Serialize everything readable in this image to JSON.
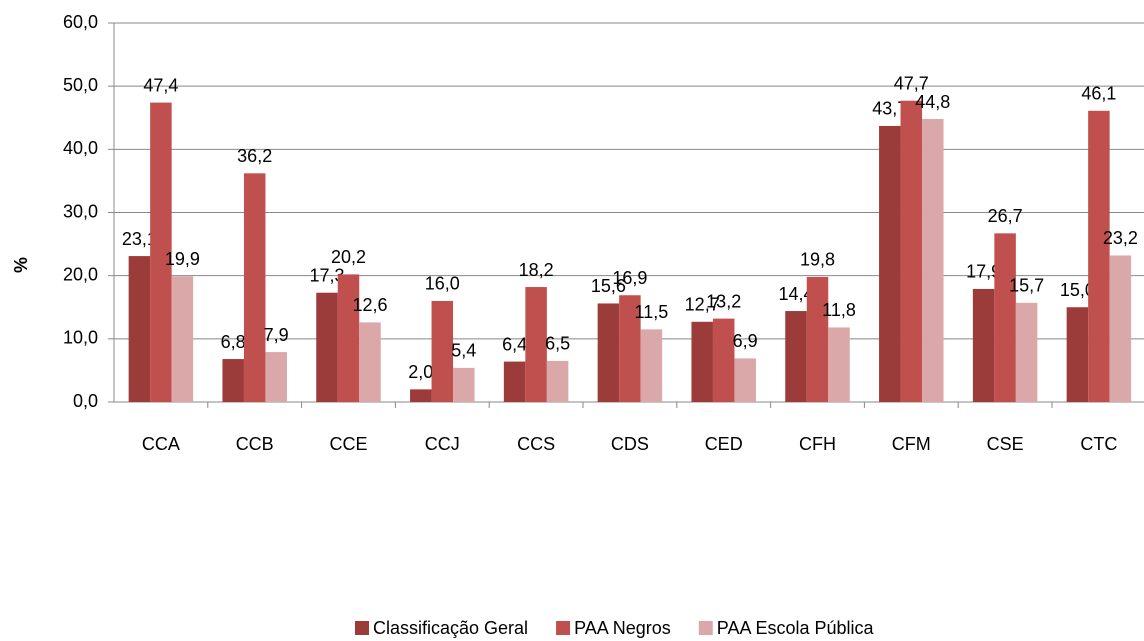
{
  "chart_data": {
    "type": "bar",
    "ylabel": "%",
    "categories": [
      "CCA",
      "CCB",
      "CCE",
      "CCJ",
      "CCS",
      "CDS",
      "CED",
      "CFH",
      "CFM",
      "CSE",
      "CTC"
    ],
    "series": [
      {
        "name": "Classificação Geral",
        "color": "#9c3c3a",
        "values": [
          23.1,
          6.8,
          17.3,
          2.0,
          6.4,
          15.6,
          12.7,
          14.4,
          43.7,
          17.9,
          15.0
        ],
        "value_labels": [
          "23,1",
          "6,8",
          "17,3",
          "2,0",
          "6,4",
          "15,6",
          "12,7",
          "14,4",
          "43,7",
          "17,9",
          "15,0"
        ]
      },
      {
        "name": "PAA Negros",
        "color": "#c0504d",
        "values": [
          47.4,
          36.2,
          20.2,
          16.0,
          18.2,
          16.9,
          13.2,
          19.8,
          47.7,
          26.7,
          46.1
        ],
        "value_labels": [
          "47,4",
          "36,2",
          "20,2",
          "16,0",
          "18,2",
          "16,9",
          "13,2",
          "19,8",
          "47,7",
          "26,7",
          "46,1"
        ]
      },
      {
        "name": "PAA Escola Pública",
        "color": "#dba8a9",
        "values": [
          19.9,
          7.9,
          12.6,
          5.4,
          6.5,
          11.5,
          6.9,
          11.8,
          44.8,
          15.7,
          23.2
        ],
        "value_labels": [
          "19,9",
          "7,9",
          "12,6",
          "5,4",
          "6,5",
          "11,5",
          "6,9",
          "11,8",
          "44,8",
          "15,7",
          "23,2"
        ]
      }
    ],
    "ylim": [
      0,
      60
    ],
    "yticks": [
      {
        "value": 0,
        "label": "0,0"
      },
      {
        "value": 10,
        "label": "10,0"
      },
      {
        "value": 20,
        "label": "20,0"
      },
      {
        "value": 30,
        "label": "30,0"
      },
      {
        "value": 40,
        "label": "40,0"
      },
      {
        "value": 50,
        "label": "50,0"
      },
      {
        "value": 60,
        "label": "60,0"
      }
    ],
    "grid": true,
    "legend": "bottom"
  }
}
